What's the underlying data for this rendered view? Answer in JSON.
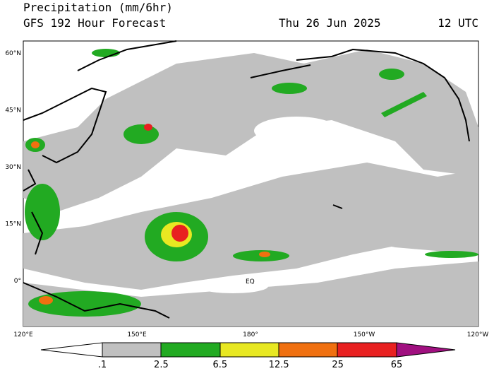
{
  "header": {
    "title": "Precipitation (mm/6hr)",
    "subtitle": "GFS 192 Hour Forecast",
    "date": "Thu 26 Jun 2025",
    "time": "12 UTC"
  },
  "map": {
    "lat_labels": [
      "60°N",
      "45°N",
      "30°N",
      "15°N",
      "0°"
    ],
    "lon_labels": [
      "120°E",
      "150°E",
      "180°",
      "150°W",
      "120°W"
    ],
    "equator_label": "EQ"
  },
  "colorbar": {
    "labels": [
      ".1",
      "2.5",
      "6.5",
      "12.5",
      "25",
      "65"
    ]
  }
}
